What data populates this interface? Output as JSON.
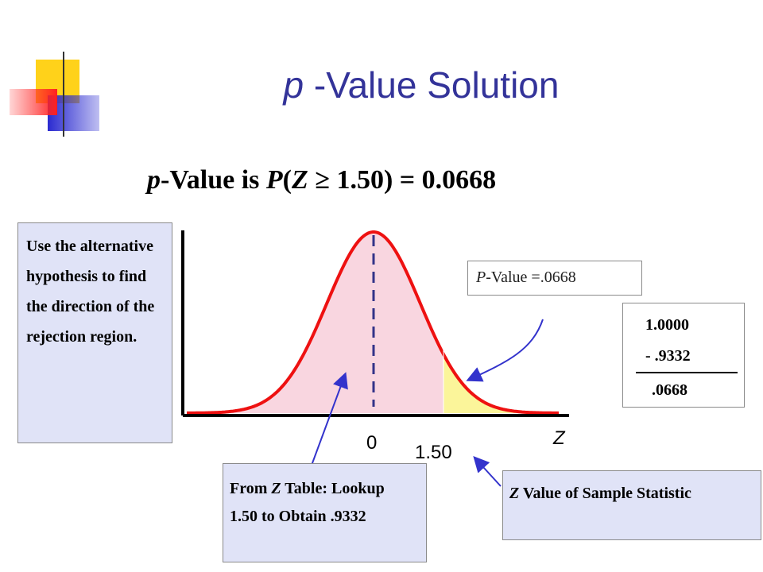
{
  "title": {
    "parts": [
      {
        "text": "p",
        "italic": true
      },
      {
        "text": " -Value Solution"
      }
    ]
  },
  "headline": {
    "parts": [
      {
        "text": "p",
        "italic": true
      },
      {
        "text": "-Value is "
      },
      {
        "text": "P",
        "italic": true
      },
      {
        "text": "("
      },
      {
        "text": "Z",
        "italic": true
      },
      {
        "text": " ≥ 1.50) = 0.0668"
      }
    ]
  },
  "left_note": {
    "parts": [
      {
        "text": "Use the alternative hypothesis to find the direction of the rejection region."
      }
    ]
  },
  "pvalue_box": {
    "parts": [
      {
        "text": "P",
        "italic": true
      },
      {
        "text": "-Value =.0668"
      }
    ]
  },
  "calculation": {
    "minuend": "1.0000",
    "subtrahend": "- .9332",
    "result": ".0668"
  },
  "axis": {
    "mean_label": "0",
    "z_label": "1.50",
    "axis_name": "Z"
  },
  "table_note": {
    "parts": [
      {
        "text": "From "
      },
      {
        "text": "Z",
        "italic": true
      },
      {
        "text": " Table: Lookup 1.50 to Obtain .9332"
      }
    ]
  },
  "statistic_note": {
    "parts": [
      {
        "text": "Z",
        "italic": true
      },
      {
        "text": " Value of Sample Statistic"
      }
    ]
  }
}
